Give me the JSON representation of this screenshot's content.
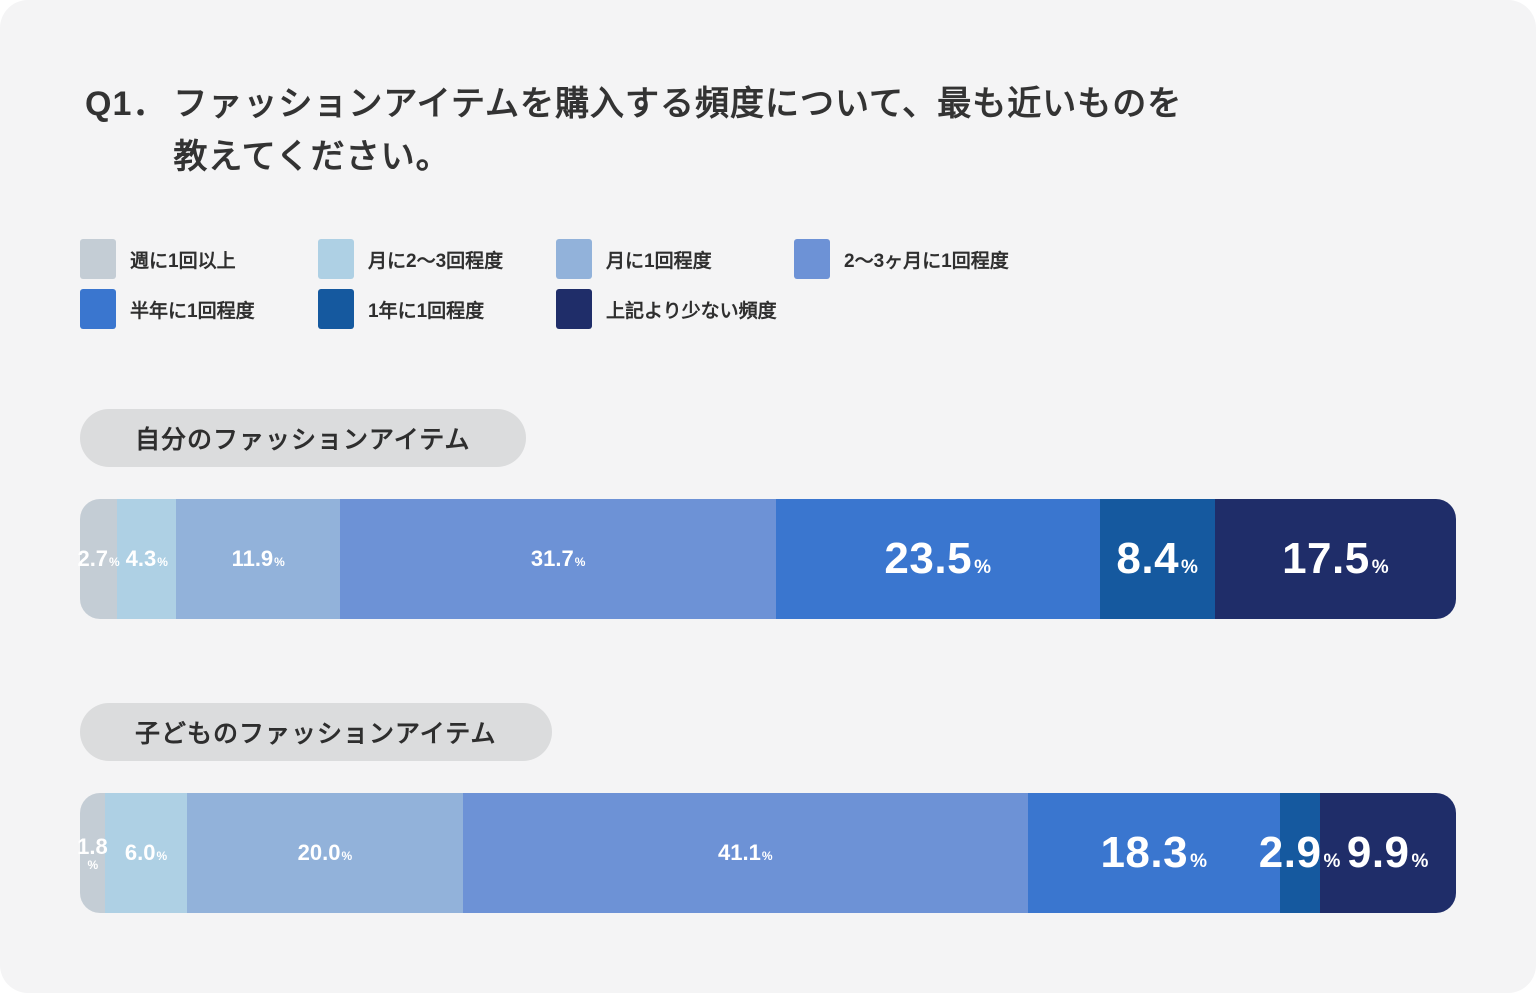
{
  "title": {
    "prefix": "Q1．",
    "line1": "ファッションアイテムを購入する頻度について、最も近いものを",
    "line2": "教えてください。"
  },
  "chart_data": {
    "type": "bar",
    "variant": "horizontal-stacked-100pct",
    "title": "Q1．ファッションアイテムを購入する頻度について、最も近いものを教えてください。",
    "unit": "%",
    "xlim": [
      0,
      100
    ],
    "legend_position": "top",
    "categories": [
      "週に1回以上",
      "月に2〜3回程度",
      "月に1回程度",
      "2〜3ヶ月に1回程度",
      "半年に1回程度",
      "1年に1回程度",
      "上記より少ない頻度"
    ],
    "colors": [
      "#c4cdd5",
      "#aed0e4",
      "#92b2da",
      "#6d92d6",
      "#3a76cf",
      "#15599f",
      "#1f2d69"
    ],
    "series": [
      {
        "name": "自分のファッションアイテム",
        "values": [
          2.7,
          4.3,
          11.9,
          31.7,
          23.5,
          8.4,
          17.5
        ],
        "labels": [
          "2.7",
          "4.3",
          "11.9",
          "31.7",
          "23.5",
          "8.4",
          "17.5"
        ]
      },
      {
        "name": "子どものファッションアイテム",
        "values": [
          1.8,
          6.0,
          20.0,
          41.1,
          18.3,
          2.9,
          9.9
        ],
        "labels": [
          "1.8",
          "6.0",
          "20.0",
          "41.1",
          "18.3",
          "2.9",
          "9.9"
        ]
      }
    ]
  },
  "style": {
    "card_background": "#f4f4f5",
    "pill_background": "#dbdcdd",
    "title_color": "#333333",
    "bar_label_color": "#ffffff"
  }
}
